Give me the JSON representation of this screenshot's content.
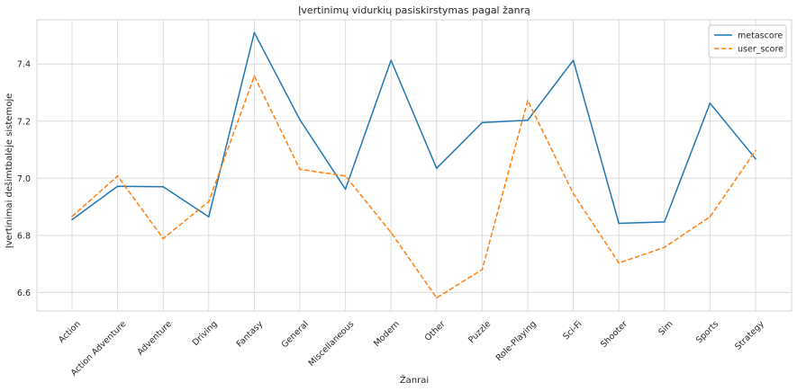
{
  "chart_data": {
    "type": "line",
    "title": "Įvertinimų vidurkių pasiskirstymas pagal žanrą",
    "xlabel": "Žanrai",
    "ylabel": "Įvertinimai dešimtbalėje sistemoje",
    "categories": [
      "Action",
      "Action Adventure",
      "Adventure",
      "Driving",
      "Fantasy",
      "General",
      "Miscellaneous",
      "Modern",
      "Other",
      "Puzzle",
      "Role-Playing",
      "Sci-Fi",
      "Shooter",
      "Sim",
      "Sports",
      "Strategy"
    ],
    "yticks": [
      "6.6",
      "6.8",
      "7.0",
      "7.2",
      "7.4"
    ],
    "ylim": [
      6.535,
      7.555
    ],
    "grid": true,
    "legend_position": "top-right",
    "series": [
      {
        "name": "metascore",
        "color": "#1f77b4",
        "dash": "solid",
        "values": [
          6.855,
          6.972,
          6.97,
          6.865,
          7.51,
          7.205,
          6.962,
          7.413,
          7.035,
          7.195,
          7.203,
          7.413,
          6.842,
          6.847,
          7.263,
          7.068
        ]
      },
      {
        "name": "user_score",
        "color": "#ff7f0e",
        "dash": "dashed",
        "values": [
          6.866,
          7.008,
          6.789,
          6.918,
          7.358,
          7.031,
          7.008,
          6.81,
          6.581,
          6.68,
          7.272,
          6.946,
          6.703,
          6.758,
          6.865,
          7.097
        ]
      }
    ]
  }
}
